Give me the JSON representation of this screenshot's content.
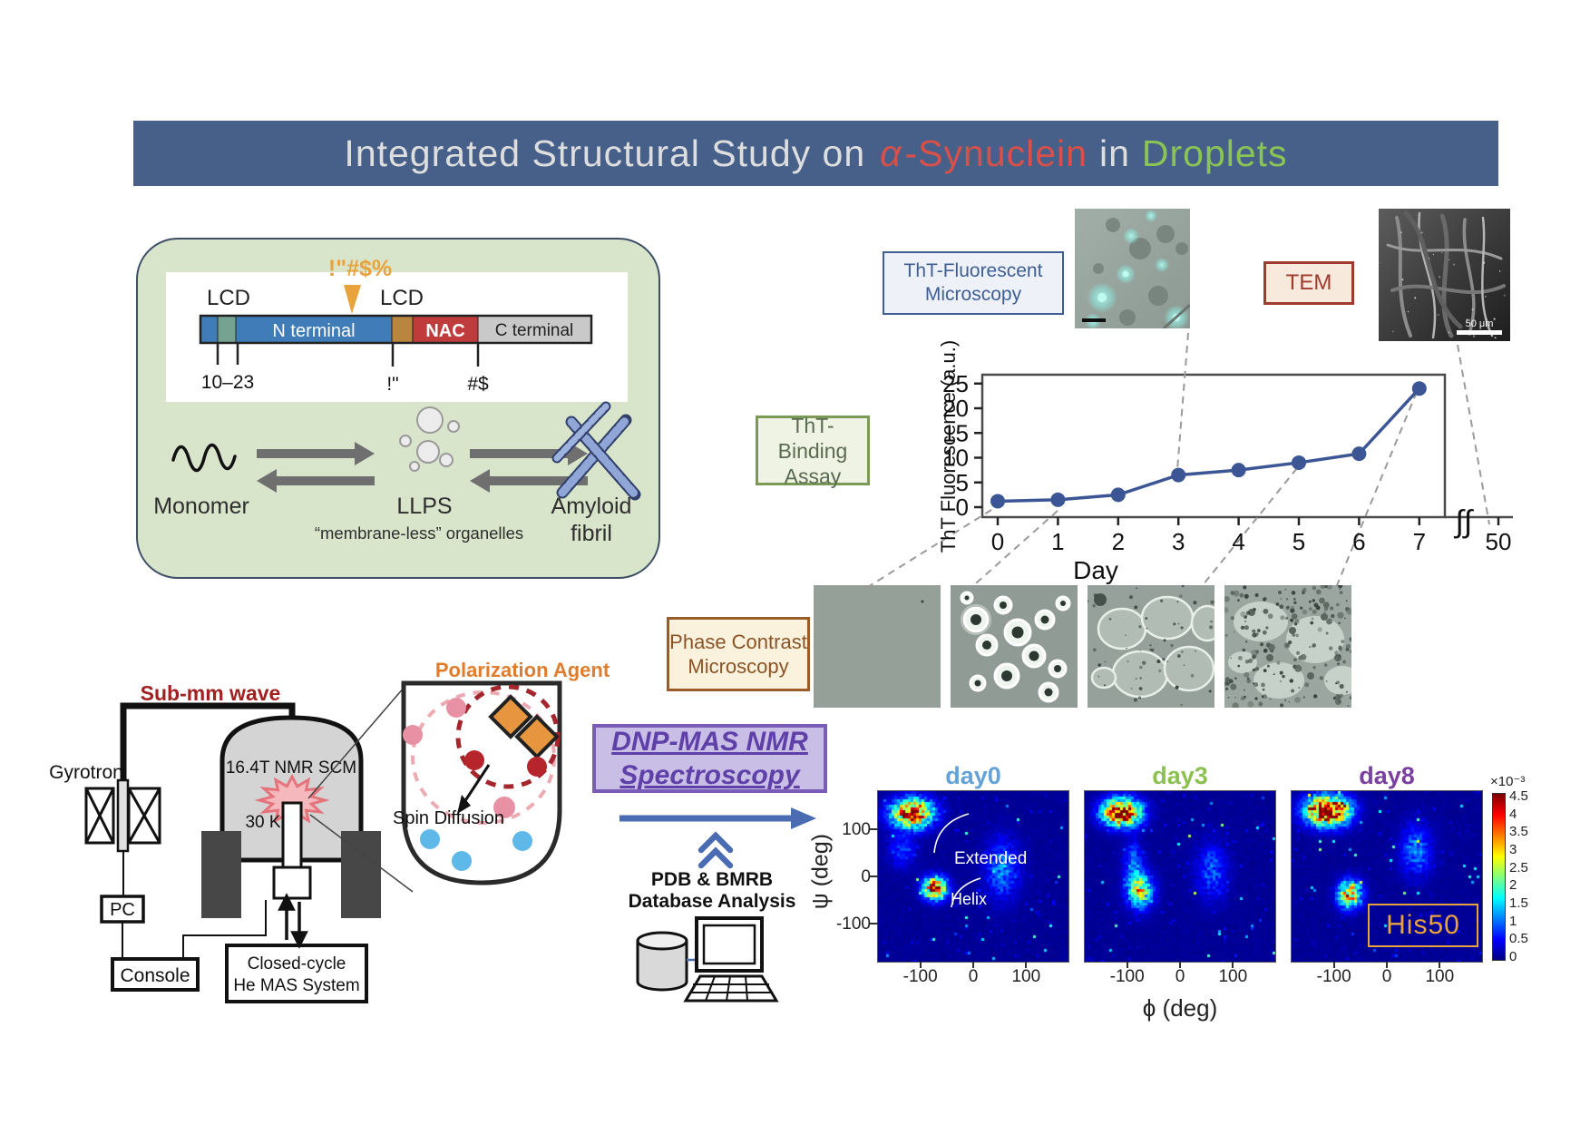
{
  "colors": {
    "titleBar": "#466089",
    "titleText": "#dedede",
    "titleRed": "#d8504a",
    "titleGreen": "#8ac455",
    "panelGreen": "#d9e5ca",
    "panelBorder": "#3c4f66",
    "domBlue": "#3f7cb8",
    "domTeal": "#74a491",
    "domTan": "#b8863f",
    "domRed": "#c03c3c",
    "domGray": "#c9c9c9",
    "orange": "#e8a33c",
    "thtBorder": "#3d5f94",
    "thtBg": "#eef1f8",
    "temBorder": "#9e3a2e",
    "temBg": "#f8e9dd",
    "assayBorder": "#7a9a56",
    "assayBg": "#eff3e3",
    "assayText": "#5a6b52",
    "chartBlue": "#3c5695",
    "phaseBorder": "#9a5c28",
    "phaseBg": "#fbf2de",
    "phaseText": "#8a5426",
    "darkRed": "#a32020",
    "polarOrange": "#e07c2c",
    "dnpBorder": "#7b5cb8",
    "dnpBg": "#c9bfe6",
    "dnpText": "#5f3fa8",
    "arrowBlue": "#4a6cb3",
    "day0": "#63a3d8",
    "day3": "#8cc152",
    "day8": "#7b3fa0",
    "his50": "#e8a33c"
  },
  "title": {
    "main": "Integrated Structural Study on",
    "alpha": "α",
    "synuclein": "-Synuclein",
    "in_word": "in",
    "droplets": "Droplets"
  },
  "overview": {
    "mutation": "!\"#$%",
    "lcd_left": "LCD",
    "lcd_right": "LCD",
    "n_terminal": "N terminal",
    "nac": "NAC",
    "c_terminal": "C terminal",
    "tick1": "10–23",
    "tick2": "!\"",
    "tick3": "#$",
    "monomer": "Monomer",
    "llps": "LLPS",
    "organelles": "“membrane-less” organelles",
    "amyloid1": "Amyloid",
    "amyloid2": "fibril"
  },
  "imaging": {
    "tht_label1": "ThT-Fluorescent",
    "tht_label2": "Microscopy",
    "tem_label": "TEM",
    "tem_scale": "50 μm",
    "assay1": "ThT-Binding",
    "assay2": "Assay",
    "phase1": "Phase  Contrast",
    "phase2": "Microscopy"
  },
  "chart_data": {
    "type": "line",
    "x": [
      0,
      1,
      2,
      3,
      4,
      5,
      6,
      7
    ],
    "values": [
      1.2,
      1.5,
      2.5,
      6.5,
      7.5,
      9,
      10.8,
      24
    ],
    "extra_x_tick": "50",
    "break_symbol": "∫∫",
    "xlabel": "Day",
    "ylabel": "ThT Fluorescence (a.u.)",
    "yticks": [
      0,
      5,
      10,
      15,
      20,
      25
    ],
    "ylim": [
      0,
      27
    ],
    "line_color": "#3c5695",
    "grid": false,
    "legend": "none"
  },
  "instrument": {
    "submm": "Sub-mm wave",
    "gyrotron": "Gyrotron",
    "scm": "16.4T NMR SCM",
    "temp": "30 K",
    "pc": "PC",
    "console": "Console",
    "mas1": "Closed-cycle",
    "mas2": "He MAS System",
    "polarization": "Polarization Agent",
    "spin": "Spin Diffusion"
  },
  "dnp": {
    "line1": "DNP-MAS NMR",
    "line2": "Spectroscopy",
    "pdb1": "PDB & BMRB",
    "pdb2": "Database Analysis"
  },
  "rama": {
    "ylabel": "ψ (deg)",
    "xlabel": "ϕ (deg)",
    "yticks": [
      "100",
      "0",
      "-100"
    ],
    "xticks": [
      "-100",
      "0",
      "100"
    ],
    "extended": "Extended",
    "helix": "Helix",
    "his50": "His50",
    "colorbar_exp": "×10⁻³",
    "colorbar_ticks": [
      "4.5",
      "4",
      "3.5",
      "3",
      "2.5",
      "2",
      "1.5",
      "1",
      "0.5",
      "0"
    ],
    "panels": [
      {
        "label": "day0",
        "seed": 7,
        "blobs": [
          [
            -115,
            133,
            26,
            20,
            0.95
          ],
          [
            -72,
            -25,
            15,
            16,
            0.92
          ],
          [
            55,
            15,
            22,
            42,
            0.22
          ],
          [
            -135,
            55,
            18,
            25,
            0.14
          ]
        ]
      },
      {
        "label": "day3",
        "seed": 13,
        "blobs": [
          [
            -110,
            135,
            24,
            19,
            1.02
          ],
          [
            -75,
            -30,
            16,
            24,
            0.55
          ],
          [
            -88,
            25,
            12,
            32,
            0.22
          ],
          [
            60,
            10,
            20,
            40,
            0.18
          ]
        ]
      },
      {
        "label": "day8",
        "seed": 29,
        "blobs": [
          [
            -112,
            138,
            27,
            21,
            1.08
          ],
          [
            -70,
            -38,
            15,
            19,
            0.72
          ],
          [
            55,
            55,
            20,
            36,
            0.22
          ]
        ]
      }
    ]
  }
}
